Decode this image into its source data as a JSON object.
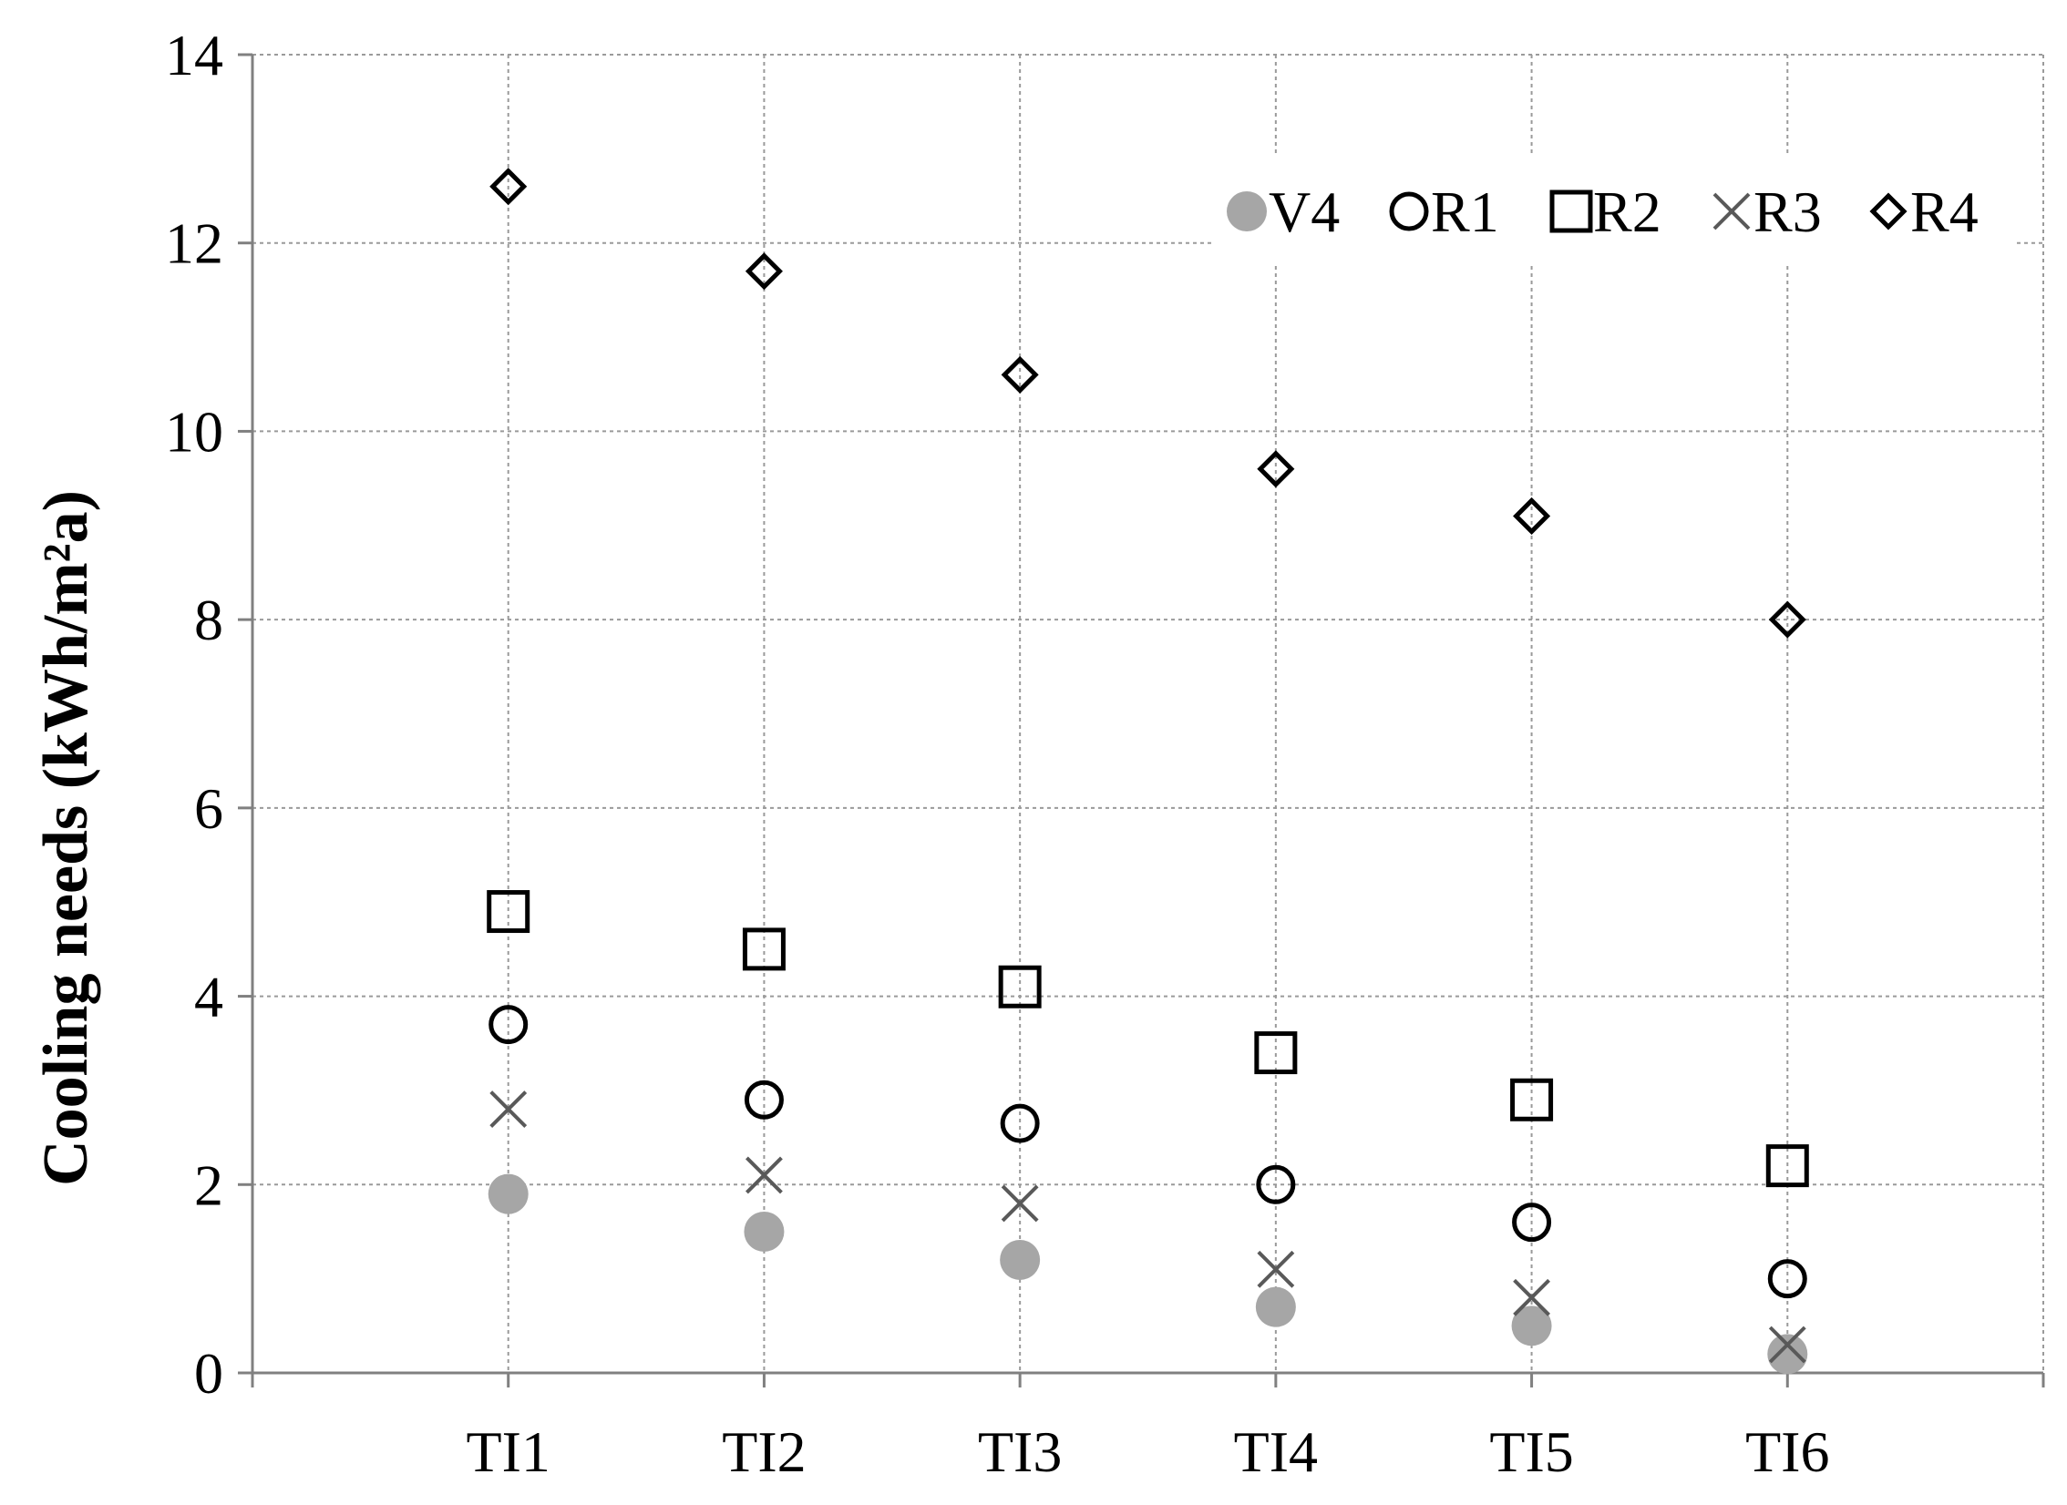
{
  "chart_data": {
    "type": "scatter",
    "title": "",
    "xlabel": "",
    "ylabel": "Cooling needs (kWh/m²a)",
    "categories": [
      "TI1",
      "TI2",
      "TI3",
      "TI4",
      "TI5",
      "TI6"
    ],
    "ylim": [
      0,
      14
    ],
    "yticks": [
      0,
      2,
      4,
      6,
      8,
      10,
      12,
      14
    ],
    "grid": true,
    "legend_position": "top-right",
    "series": [
      {
        "name": "V4",
        "marker": "filled-circle",
        "color": "#a6a6a6",
        "values": [
          1.9,
          1.5,
          1.2,
          0.7,
          0.5,
          0.2
        ]
      },
      {
        "name": "R1",
        "marker": "open-circle",
        "color": "#000000",
        "values": [
          3.7,
          2.9,
          2.65,
          2.0,
          1.6,
          1.0
        ]
      },
      {
        "name": "R2",
        "marker": "open-square",
        "color": "#000000",
        "values": [
          4.9,
          4.5,
          4.1,
          3.4,
          2.9,
          2.2
        ]
      },
      {
        "name": "R3",
        "marker": "cross",
        "color": "#595959",
        "values": [
          2.8,
          2.1,
          1.8,
          1.1,
          0.8,
          0.3
        ]
      },
      {
        "name": "R4",
        "marker": "open-diamond",
        "color": "#000000",
        "values": [
          12.6,
          11.7,
          10.6,
          9.6,
          9.1,
          8.0
        ]
      }
    ]
  }
}
